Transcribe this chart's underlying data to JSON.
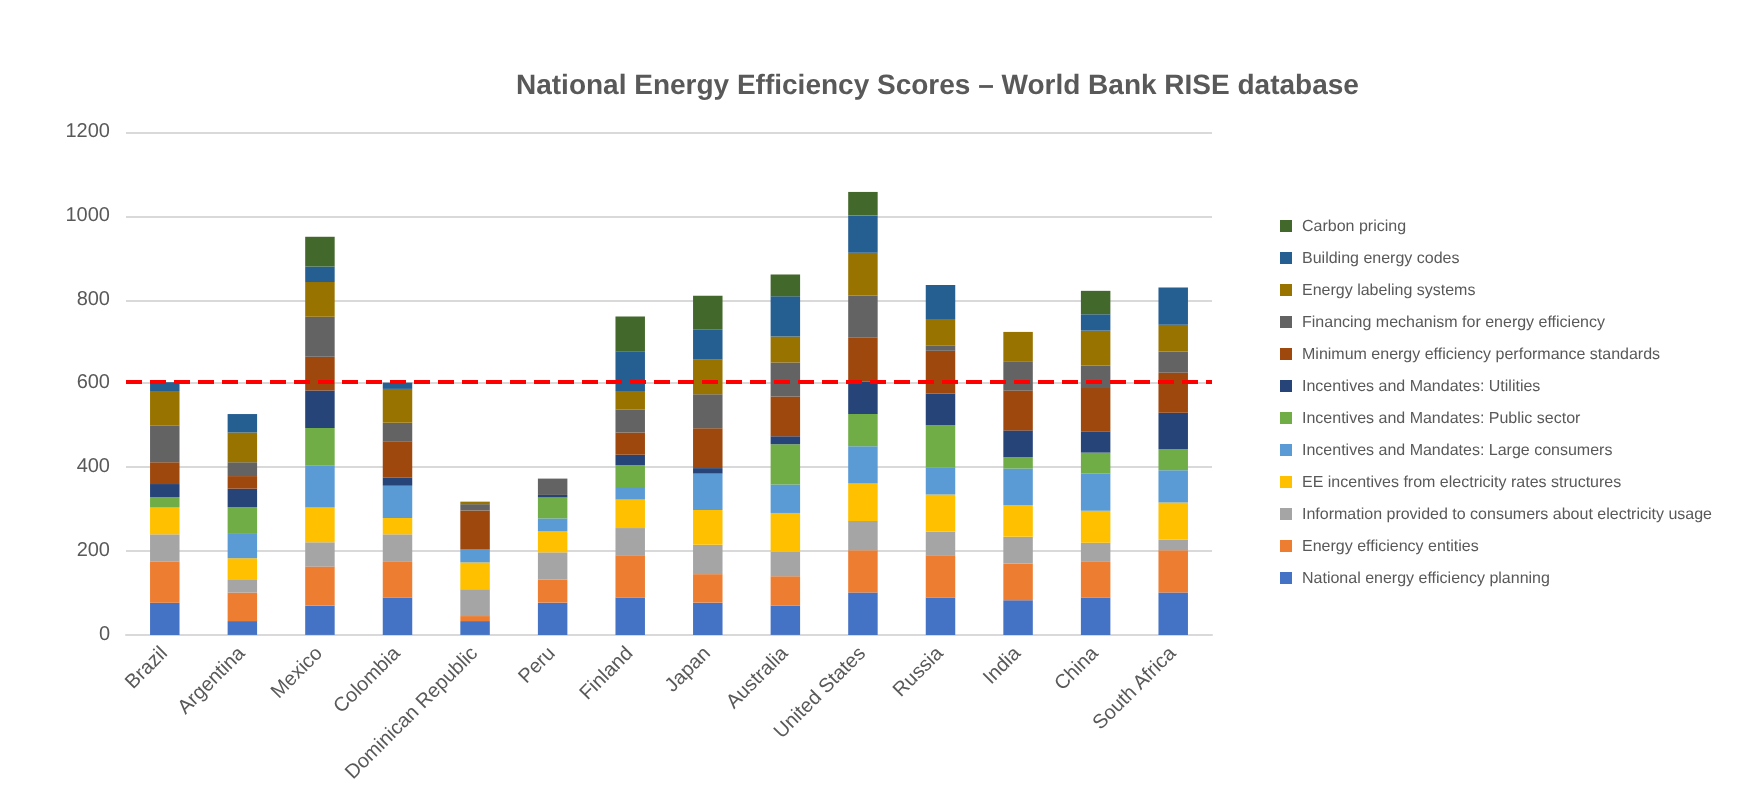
{
  "chart_data": {
    "type": "bar",
    "title": "National Energy Efficiency Scores – World Bank RISE database",
    "stacked": true,
    "categories": [
      "Brazil",
      "Argentina",
      "Mexico",
      "Colombia",
      "Dominican Republic",
      "Peru",
      "Finland",
      "Japan",
      "Australia",
      "United States",
      "Russia",
      "India",
      "China",
      "South Africa"
    ],
    "series": [
      {
        "name": "National energy efficiency planning",
        "color": "#4472c4",
        "values": [
          77,
          33,
          70,
          89,
          33,
          77,
          89,
          77,
          70,
          101,
          89,
          83,
          89,
          101
        ]
      },
      {
        "name": "Energy efficiency entities",
        "color": "#ed7d31",
        "values": [
          98,
          68,
          93,
          87,
          12,
          55,
          101,
          68,
          70,
          101,
          101,
          87,
          87,
          101
        ]
      },
      {
        "name": "Information provided to consumers about electricity usage",
        "color": "#a5a5a5",
        "values": [
          65,
          30,
          58,
          64,
          64,
          65,
          65,
          70,
          58,
          70,
          56,
          64,
          44,
          25
        ]
      },
      {
        "name": "EE incentives from electricity rates structures",
        "color": "#ffc000",
        "values": [
          64,
          52,
          83,
          39,
          64,
          50,
          68,
          83,
          93,
          89,
          89,
          76,
          76,
          89
        ]
      },
      {
        "name": "Incentives and Mandates: Large consumers",
        "color": "#5b9bd5",
        "values": [
          0,
          58,
          101,
          77,
          31,
          31,
          30,
          87,
          68,
          89,
          64,
          87,
          89,
          77
        ]
      },
      {
        "name": "Incentives and Mandates: Public sector",
        "color": "#70ad47",
        "values": [
          25,
          64,
          89,
          0,
          0,
          50,
          52,
          0,
          96,
          77,
          101,
          27,
          50,
          50
        ]
      },
      {
        "name": "Incentives and Mandates: Utilities",
        "color": "#264478",
        "values": [
          31,
          44,
          89,
          19,
          0,
          6,
          25,
          13,
          19,
          77,
          76,
          64,
          50,
          87
        ]
      },
      {
        "name": "Minimum energy efficiency performance standards",
        "color": "#9e480e",
        "values": [
          52,
          30,
          81,
          87,
          93,
          0,
          53,
          95,
          95,
          105,
          102,
          95,
          104,
          96
        ]
      },
      {
        "name": "Financing mechanism for energy efficiency",
        "color": "#636363",
        "values": [
          87,
          33,
          95,
          44,
          15,
          39,
          55,
          81,
          81,
          101,
          12,
          70,
          53,
          50
        ]
      },
      {
        "name": "Energy labeling systems",
        "color": "#997300",
        "values": [
          83,
          71,
          83,
          81,
          6,
          0,
          44,
          83,
          62,
          102,
          64,
          70,
          84,
          64
        ]
      },
      {
        "name": "Building energy codes",
        "color": "#255e91",
        "values": [
          21,
          44,
          37,
          15,
          0,
          0,
          95,
          71,
          96,
          89,
          81,
          0,
          39,
          89
        ]
      },
      {
        "name": "Carbon pricing",
        "color": "#43682b",
        "values": [
          0,
          0,
          71,
          0,
          0,
          0,
          83,
          81,
          52,
          56,
          0,
          0,
          56,
          0
        ]
      }
    ],
    "ylim": [
      0,
      1200
    ],
    "yticks": [
      0,
      200,
      400,
      600,
      800,
      1000,
      1200
    ],
    "grid": "y",
    "legend": "right",
    "ref_lines": [
      {
        "axis": "y",
        "value": 605,
        "color": "#ff0000",
        "line_style": "dashed"
      }
    ]
  }
}
